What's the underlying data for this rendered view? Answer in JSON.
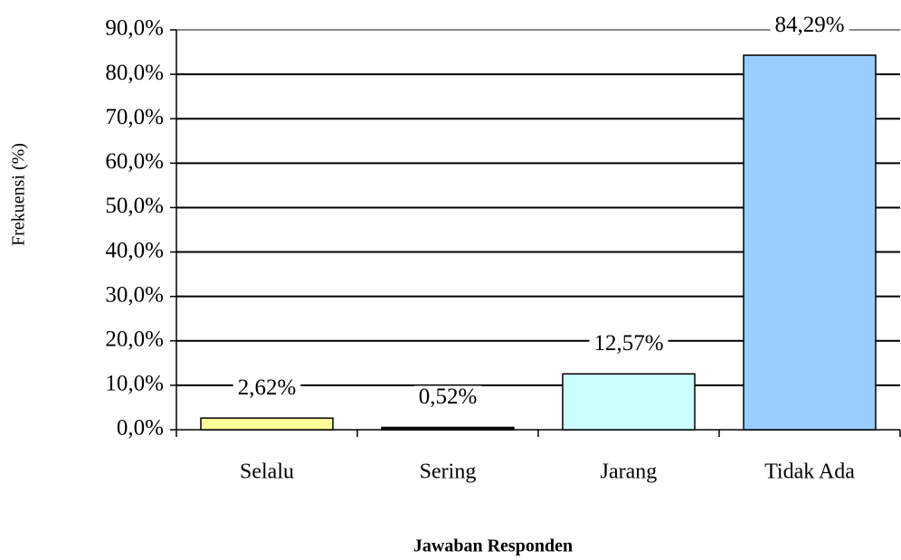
{
  "chart_data": {
    "type": "bar",
    "y_axis_label": "Frekuensi (%)",
    "x_axis_label": "Jawaban Responden",
    "categories": [
      "Selalu",
      "Sering",
      "Jarang",
      "Tidak Ada"
    ],
    "values": [
      2.62,
      0.52,
      12.57,
      84.29
    ],
    "value_labels": [
      "2,62%",
      "0,52%",
      "12,57%",
      "84,29%"
    ],
    "colors": [
      "#ffff99",
      "#1a1a1a",
      "#ccffff",
      "#99ccff"
    ],
    "ylim": [
      0,
      90
    ],
    "yticks": [
      {
        "value": 0,
        "label": "0,0%"
      },
      {
        "value": 10,
        "label": "10,0%"
      },
      {
        "value": 20,
        "label": "20,0%"
      },
      {
        "value": 30,
        "label": "30,0%"
      },
      {
        "value": 40,
        "label": "40,0%"
      },
      {
        "value": 50,
        "label": "50,0%"
      },
      {
        "value": 60,
        "label": "60,0%"
      },
      {
        "value": 70,
        "label": "70,0%"
      },
      {
        "value": 80,
        "label": "80,0%"
      },
      {
        "value": 90,
        "label": "90,0%"
      }
    ],
    "grid": true
  }
}
